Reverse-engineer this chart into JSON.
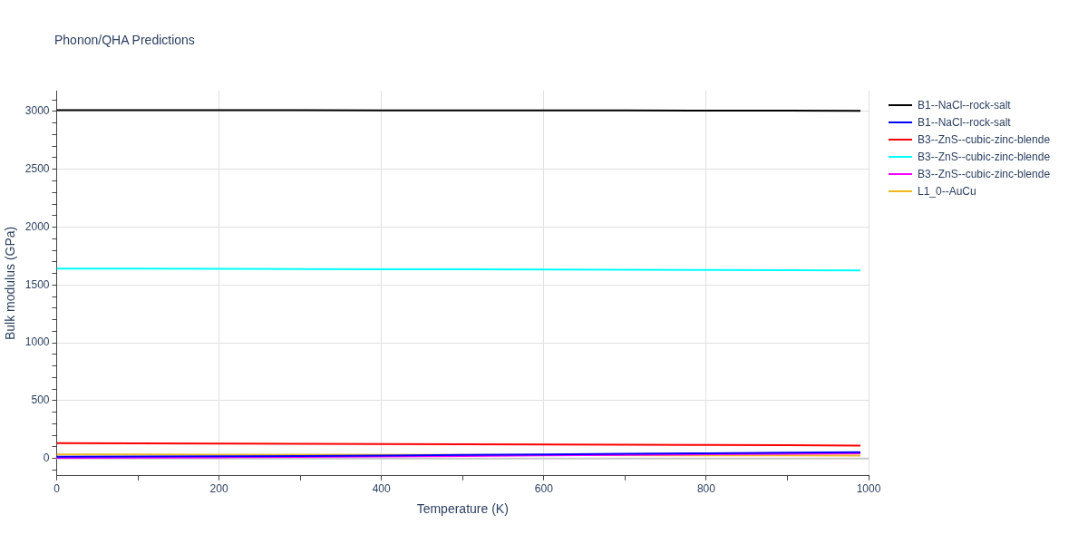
{
  "chart_data": {
    "type": "line",
    "title": "Phonon/QHA Predictions",
    "xlabel": "Temperature (K)",
    "ylabel": "Bulk modulus (GPa)",
    "x": [
      0,
      100,
      200,
      300,
      400,
      500,
      600,
      700,
      800,
      900,
      990
    ],
    "series": [
      {
        "name": "B1--NaCl--rock-salt",
        "color": "#000000",
        "values": [
          3012,
          3012,
          3011,
          3011,
          3010,
          3010,
          3009,
          3009,
          3008,
          3007,
          3006
        ]
      },
      {
        "name": "B1--NaCl--rock-salt",
        "color": "#0000ff",
        "values": [
          15,
          16,
          18,
          21,
          25,
          30,
          35,
          40,
          45,
          50,
          55
        ]
      },
      {
        "name": "B3--ZnS--cubic-zinc-blende",
        "color": "#ff0000",
        "values": [
          133,
          131,
          129,
          127,
          125,
          123,
          121,
          119,
          117,
          115,
          112
        ]
      },
      {
        "name": "B3--ZnS--cubic-zinc-blende",
        "color": "#00ffff",
        "values": [
          1642,
          1641,
          1639,
          1638,
          1636,
          1635,
          1633,
          1632,
          1630,
          1628,
          1626
        ]
      },
      {
        "name": "B3--ZnS--cubic-zinc-blende",
        "color": "#ff00ff",
        "values": [
          5,
          7,
          10,
          13,
          17,
          21,
          26,
          31,
          36,
          41,
          45
        ]
      },
      {
        "name": "L1_0--AuCu",
        "color": "#f0b71e",
        "values": [
          35,
          34,
          33,
          32,
          null,
          null,
          null,
          null,
          27,
          26,
          25
        ]
      }
    ],
    "xlim": [
      0,
      1000
    ],
    "xticks": [
      0,
      {
        "value": 100,
        "label": null
      },
      200,
      {
        "value": 300,
        "label": null
      },
      400,
      {
        "value": 500,
        "label": null
      },
      600,
      {
        "value": 700,
        "label": null
      },
      800,
      {
        "value": 900,
        "label": null
      },
      1000
    ],
    "ylim": [
      -150,
      3180
    ],
    "yticks": [
      {
        "value": -100,
        "label": null
      },
      0,
      {
        "value": 100,
        "label": null
      },
      {
        "value": 200,
        "label": null
      },
      {
        "value": 300,
        "label": null
      },
      {
        "value": 400,
        "label": null
      },
      500,
      {
        "value": 600,
        "label": null
      },
      {
        "value": 700,
        "label": null
      },
      {
        "value": 800,
        "label": null
      },
      {
        "value": 900,
        "label": null
      },
      1000,
      {
        "value": 1100,
        "label": null
      },
      {
        "value": 1200,
        "label": null
      },
      {
        "value": 1300,
        "label": null
      },
      {
        "value": 1400,
        "label": null
      },
      1500,
      {
        "value": 1600,
        "label": null
      },
      {
        "value": 1700,
        "label": null
      },
      {
        "value": 1800,
        "label": null
      },
      {
        "value": 1900,
        "label": null
      },
      2000,
      {
        "value": 2100,
        "label": null
      },
      {
        "value": 2200,
        "label": null
      },
      {
        "value": 2300,
        "label": null
      },
      {
        "value": 2400,
        "label": null
      },
      2500,
      {
        "value": 2600,
        "label": null
      },
      {
        "value": 2700,
        "label": null
      },
      {
        "value": 2800,
        "label": null
      },
      {
        "value": 2900,
        "label": null
      },
      3000,
      {
        "value": 3100,
        "label": null
      }
    ],
    "grid": true,
    "legend": "top right",
    "marker": "none",
    "line_style": "solid"
  }
}
